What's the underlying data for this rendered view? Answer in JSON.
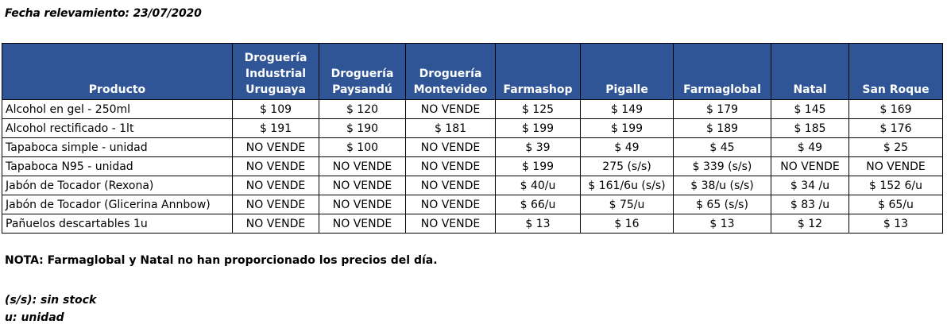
{
  "date_line": "Fecha relevamiento: 23/07/2020",
  "table": {
    "headers": [
      "Producto",
      "Droguería\nIndustrial\nUruguaya",
      "Droguería\nPaysandú",
      "Droguería\nMontevideo",
      "Farmashop",
      "Pigalle",
      "Farmaglobal",
      "Natal",
      "San Roque"
    ],
    "rows": [
      [
        "Alcohol en gel  - 250ml",
        "$ 109",
        "$ 120",
        "NO VENDE",
        "$ 125",
        "$ 149",
        "$ 179",
        "$ 145",
        "$ 169"
      ],
      [
        "Alcohol rectificado - 1lt",
        "$ 191",
        "$ 190",
        "$ 181",
        "$ 199",
        "$ 199",
        "$ 189",
        "$ 185",
        "$ 176"
      ],
      [
        "Tapaboca simple - unidad",
        "NO VENDE",
        "$ 100",
        "NO VENDE",
        "$ 39",
        "$ 49",
        "$ 45",
        "$ 49",
        "$ 25"
      ],
      [
        "Tapaboca N95 - unidad",
        "NO VENDE",
        "NO VENDE",
        "NO VENDE",
        "$ 199",
        "275 (s/s)",
        "$ 339 (s/s)",
        "NO VENDE",
        "NO VENDE"
      ],
      [
        "Jabón de Tocador (Rexona)",
        "NO VENDE",
        "NO VENDE",
        "NO VENDE",
        "$ 40/u",
        "$ 161/6u (s/s)",
        "$ 38/u (s/s)",
        "$ 34 /u",
        "$ 152 6/u"
      ],
      [
        "Jabón de Tocador (Glicerina Annbow)",
        "NO VENDE",
        "NO VENDE",
        "NO VENDE",
        "$ 66/u",
        "$ 75/u",
        "$ 65 (s/s)",
        "$ 83 /u",
        "$ 65/u"
      ],
      [
        "Pañuelos descartables 1u",
        "NO VENDE",
        "NO VENDE",
        "NO VENDE",
        "$ 13",
        "$ 16",
        "$ 13",
        "$ 12",
        "$ 13"
      ]
    ]
  },
  "note": "NOTA: Farmaglobal y Natal no han proporcionado los precios del día.",
  "legend": {
    "ss": "(s/s): sin stock",
    "u": "u: unidad"
  },
  "colors": {
    "header_bg": "#2f5597",
    "header_text": "#ffffff"
  }
}
